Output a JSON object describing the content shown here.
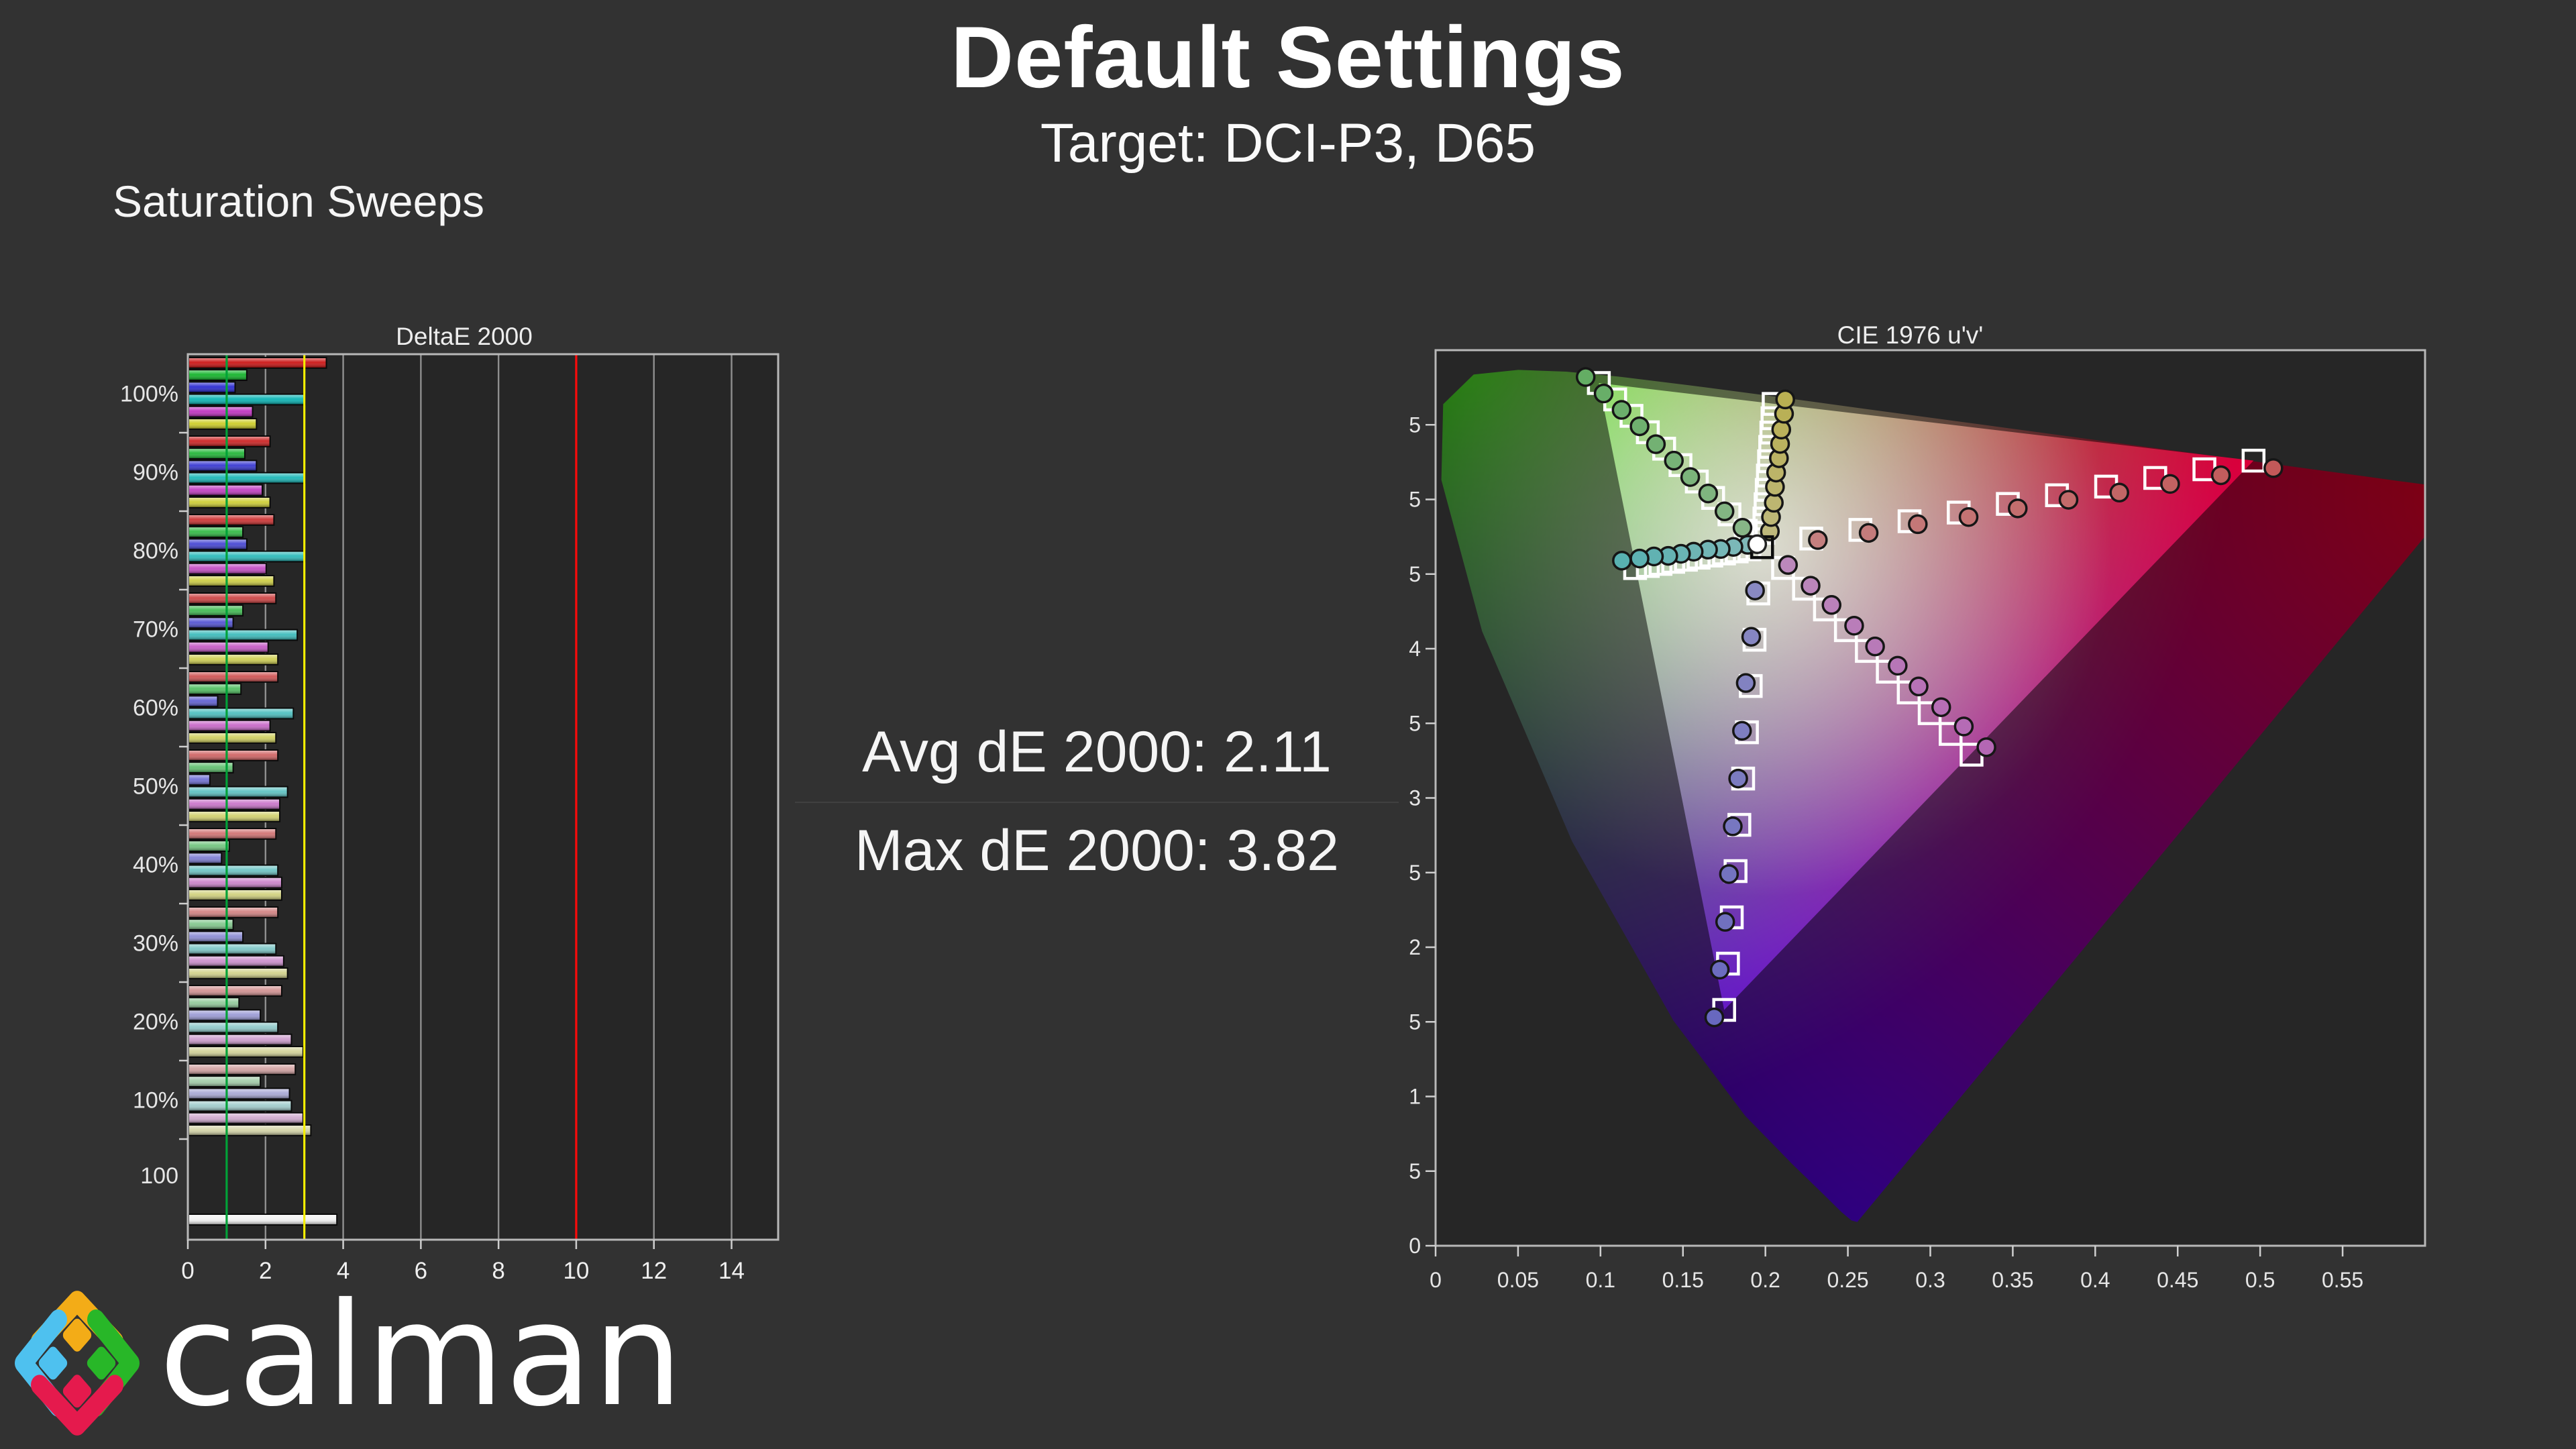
{
  "page": {
    "background": "#323232",
    "title": "Default Settings",
    "subtitle": "Target: DCI-P3, D65",
    "section_heading": "Saturation Sweeps",
    "stats": {
      "avg_line": "Avg dE 2000: 2.11",
      "max_line": "Max dE 2000: 3.82"
    },
    "logo": {
      "text": "calman",
      "icon_colors": {
        "top": "#f3ac17",
        "left": "#4ec1ef",
        "right": "#28b728",
        "bottom": "#e51a4d"
      }
    }
  },
  "chart_data": [
    {
      "type": "bar",
      "title": "DeltaE 2000",
      "orientation": "horizontal-grouped",
      "xlim": [
        0,
        15.2
      ],
      "x_ticks": [
        0,
        2,
        4,
        6,
        8,
        10,
        12,
        14
      ],
      "grid": true,
      "plot_bg": "#262626",
      "reference_lines": [
        {
          "name": "dE1-target",
          "value": 1,
          "color": "#00a238"
        },
        {
          "name": "dE3-limit",
          "value": 3,
          "color": "#f5ee00"
        },
        {
          "name": "dE10-limit",
          "value": 10,
          "color": "#fb0a0a"
        }
      ],
      "series": [
        "red",
        "green",
        "blue",
        "cyan",
        "magenta",
        "yellow"
      ],
      "series_base_colors": {
        "red": "#cc1414",
        "green": "#12b42a",
        "blue": "#2a2ad2",
        "cyan": "#0ab4b4",
        "magenta": "#c032c0",
        "yellow": "#cdcd28"
      },
      "groups": [
        {
          "label": "100%",
          "saturation": 100,
          "values": [
            3.55,
            1.5,
            1.2,
            3.0,
            1.65,
            1.75
          ]
        },
        {
          "label": "90%",
          "saturation": 90,
          "values": [
            2.1,
            1.45,
            1.75,
            3.0,
            1.9,
            2.1
          ]
        },
        {
          "label": "80%",
          "saturation": 80,
          "values": [
            2.2,
            1.4,
            1.5,
            3.0,
            2.0,
            2.2
          ]
        },
        {
          "label": "70%",
          "saturation": 70,
          "values": [
            2.25,
            1.4,
            1.15,
            2.8,
            2.05,
            2.3
          ]
        },
        {
          "label": "60%",
          "saturation": 60,
          "values": [
            2.3,
            1.35,
            0.75,
            2.7,
            2.1,
            2.25
          ]
        },
        {
          "label": "50%",
          "saturation": 50,
          "values": [
            2.3,
            1.15,
            0.55,
            2.55,
            2.35,
            2.35
          ]
        },
        {
          "label": "40%",
          "saturation": 40,
          "values": [
            2.25,
            1.05,
            0.85,
            2.3,
            2.4,
            2.4
          ]
        },
        {
          "label": "30%",
          "saturation": 30,
          "values": [
            2.3,
            1.15,
            1.4,
            2.25,
            2.45,
            2.55
          ]
        },
        {
          "label": "20%",
          "saturation": 20,
          "values": [
            2.4,
            1.3,
            1.85,
            2.3,
            2.65,
            2.95
          ]
        },
        {
          "label": "10%",
          "saturation": 10,
          "values": [
            2.75,
            1.85,
            2.6,
            2.65,
            2.95,
            3.15
          ]
        }
      ],
      "white_group": {
        "label": "100",
        "value": 3.82,
        "color": "#f2f2f2"
      }
    },
    {
      "type": "scatter",
      "title": "CIE 1976 u'v'",
      "xlim": [
        0,
        0.6
      ],
      "ylim": [
        0,
        0.6
      ],
      "axis_tick_labels": [
        "0",
        "0.05",
        "0.1",
        "0.15",
        "0.2",
        "0.25",
        "0.3",
        "0.35",
        "0.4",
        "0.45",
        "0.5",
        "0.55"
      ],
      "plot_bg": "#262626",
      "gamut": "DCI-P3",
      "white_point": {
        "u": 0.198,
        "v": 0.468
      },
      "white_measured_offset": [
        -0.003,
        0.002
      ],
      "gamut_triangle": {
        "red": [
          0.496,
          0.526
        ],
        "green": [
          0.099,
          0.578
        ],
        "blue": [
          0.175,
          0.158
        ]
      },
      "saturations_pct": [
        10,
        20,
        30,
        40,
        50,
        60,
        70,
        80,
        90,
        100
      ],
      "sweeps": [
        {
          "name": "red",
          "end": [
            0.496,
            0.526
          ],
          "base_color": "#c03030",
          "measured_offsets": [
            [
              0.004,
              -0.001
            ],
            [
              0.005,
              -0.002
            ],
            [
              0.005,
              -0.002
            ],
            [
              0.006,
              -0.003
            ],
            [
              0.006,
              -0.003
            ],
            [
              0.007,
              -0.003
            ],
            [
              0.008,
              -0.004
            ],
            [
              0.009,
              -0.004
            ],
            [
              0.01,
              -0.004
            ],
            [
              0.012,
              -0.005
            ]
          ]
        },
        {
          "name": "green",
          "end": [
            0.099,
            0.578
          ],
          "base_color": "#3fa33f",
          "measured_offsets": [
            [
              -0.002,
              0.002
            ],
            [
              -0.003,
              0.002
            ],
            [
              -0.003,
              0.003
            ],
            [
              -0.004,
              0.003
            ],
            [
              -0.004,
              0.003
            ],
            [
              -0.005,
              0.003
            ],
            [
              -0.005,
              0.004
            ],
            [
              -0.006,
              0.004
            ],
            [
              -0.007,
              0.004
            ],
            [
              -0.008,
              0.004
            ]
          ]
        },
        {
          "name": "blue",
          "end": [
            0.175,
            0.158
          ],
          "base_color": "#4545bb",
          "measured_offsets": [
            [
              -0.002,
              0.002
            ],
            [
              -0.002,
              0.002
            ],
            [
              -0.003,
              0.002
            ],
            [
              -0.003,
              0.001
            ],
            [
              -0.003,
              0.0
            ],
            [
              -0.004,
              -0.001
            ],
            [
              -0.004,
              -0.002
            ],
            [
              -0.004,
              -0.003
            ],
            [
              -0.005,
              -0.004
            ],
            [
              -0.006,
              -0.005
            ]
          ]
        },
        {
          "name": "cyan",
          "end": [
            0.121,
            0.454
          ],
          "base_color": "#2fa8a8",
          "measured_offsets": [
            [
              -0.001,
              0.003
            ],
            [
              -0.002,
              0.003
            ],
            [
              -0.002,
              0.003
            ],
            [
              -0.002,
              0.004
            ],
            [
              -0.003,
              0.004
            ],
            [
              -0.003,
              0.004
            ],
            [
              -0.003,
              0.004
            ],
            [
              -0.004,
              0.005
            ],
            [
              -0.005,
              0.005
            ],
            [
              -0.008,
              0.005
            ]
          ]
        },
        {
          "name": "magenta",
          "end": [
            0.325,
            0.329
          ],
          "base_color": "#ad43ad",
          "measured_offsets": [
            [
              0.003,
              0.002
            ],
            [
              0.004,
              0.002
            ],
            [
              0.004,
              0.003
            ],
            [
              0.005,
              0.003
            ],
            [
              0.005,
              0.003
            ],
            [
              0.006,
              0.004
            ],
            [
              0.006,
              0.004
            ],
            [
              0.007,
              0.004
            ],
            [
              0.008,
              0.005
            ],
            [
              0.009,
              0.005
            ]
          ]
        },
        {
          "name": "yellow",
          "end": [
            0.205,
            0.564
          ],
          "base_color": "#b3a626",
          "measured_offsets": [
            [
              0.004,
              0.001
            ],
            [
              0.004,
              0.001
            ],
            [
              0.005,
              0.001
            ],
            [
              0.005,
              0.002
            ],
            [
              0.005,
              0.002
            ],
            [
              0.006,
              0.002
            ],
            [
              0.006,
              0.002
            ],
            [
              0.006,
              0.002
            ],
            [
              0.007,
              0.003
            ],
            [
              0.007,
              0.003
            ]
          ]
        }
      ],
      "spectral_locus": [
        [
          0.2557,
          0.0159
        ],
        [
          0.2522,
          0.0169
        ],
        [
          0.2461,
          0.0226
        ],
        [
          0.2347,
          0.035
        ],
        [
          0.2161,
          0.0549
        ],
        [
          0.1877,
          0.0871
        ],
        [
          0.1441,
          0.151
        ],
        [
          0.0828,
          0.2708
        ],
        [
          0.0282,
          0.4117
        ],
        [
          0.0035,
          0.5131
        ],
        [
          0.0046,
          0.5638
        ],
        [
          0.0231,
          0.5837
        ],
        [
          0.0501,
          0.5868
        ],
        [
          0.0792,
          0.5856
        ],
        [
          0.1127,
          0.5821
        ],
        [
          0.1531,
          0.5766
        ],
        [
          0.2026,
          0.5694
        ],
        [
          0.2623,
          0.5604
        ],
        [
          0.3315,
          0.5501
        ],
        [
          0.4035,
          0.5393
        ],
        [
          0.4691,
          0.5296
        ],
        [
          0.5203,
          0.5219
        ],
        [
          0.5565,
          0.5165
        ],
        [
          0.583,
          0.5125
        ],
        [
          0.6005,
          0.5099
        ],
        [
          0.6234,
          0.5065
        ]
      ]
    }
  ]
}
